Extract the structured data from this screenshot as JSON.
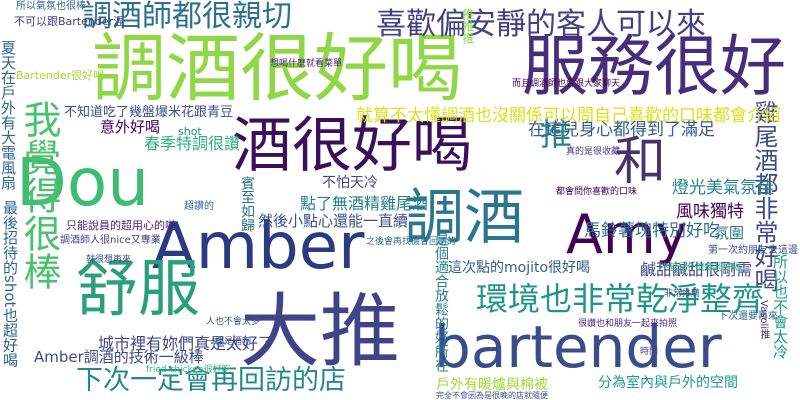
{
  "cloud": {
    "words": [
      {
        "text": "調酒很好喝",
        "color": "#8fd744"
      },
      {
        "text": "Amber",
        "color": "#2c3a84"
      },
      {
        "text": "bartender",
        "color": "#3a4c8b"
      },
      {
        "text": "大推",
        "color": "#404387"
      },
      {
        "text": "服務很好",
        "color": "#472d7b"
      },
      {
        "text": "Dou",
        "color": "#3fbc73"
      },
      {
        "text": "酒很好喝",
        "color": "#3c0f5a"
      },
      {
        "text": "Amy",
        "color": "#440154"
      },
      {
        "text": "調酒",
        "color": "#2a768e"
      },
      {
        "text": "舒服",
        "color": "#2aa07a"
      },
      {
        "text": "和",
        "color": "#46326e"
      },
      {
        "text": "喜歡偏安靜的客人可以來",
        "color": "#424086"
      },
      {
        "text": "調酒師都很親切",
        "color": "#2c728e"
      },
      {
        "text": "環境也非常乾淨整齊",
        "color": "#1f968b"
      },
      {
        "text": "我覺得很棒",
        "color": "#4ac16d"
      },
      {
        "text": "下次一定會再回訪的店",
        "color": "#23888e"
      },
      {
        "text": "推",
        "color": "#26818e"
      },
      {
        "text": "雞尾酒都非常好喝",
        "color": "#3e4a89"
      },
      {
        "text": "就算不太懂調酒也沒關係可以問自己喜歡的口味都會介紹",
        "color": "#d8e219"
      },
      {
        "text": "在這兒身心都得到了滿足",
        "color": "#365d8d"
      },
      {
        "text": "燈光美氣氛佳",
        "color": "#25838e"
      },
      {
        "text": "風味獨特",
        "color": "#440154"
      },
      {
        "text": "馬鈴薯塊特別好吃",
        "color": "#2e6e8e"
      },
      {
        "text": "鹹甜鹹甜很剛需",
        "color": "#3e4989"
      },
      {
        "text": "這次點的mojito很好喝",
        "color": "#375a8c"
      },
      {
        "text": "是個適合放鬆的好所在",
        "color": "#287d8e"
      },
      {
        "text": "城市裡有妳們真是太好了",
        "color": "#3f4889"
      },
      {
        "text": "Amber調酒的技術一級棒",
        "color": "#3e4a89"
      },
      {
        "text": "戶外有暖爐與棉被",
        "color": "#a0da39"
      },
      {
        "text": "分為室內與戶外的空間",
        "color": "#1f9a8a"
      },
      {
        "text": "最後招待的shot也超好喝",
        "color": "#32648e"
      },
      {
        "text": "夏天在戶外有大電風扇",
        "color": "#31668e"
      },
      {
        "text": "春季特調很讚",
        "color": "#2cb17e"
      },
      {
        "text": "點了無酒精雞尾酒",
        "color": "#277f8e"
      },
      {
        "text": "然後小點心還能一直續",
        "color": "#3b518b"
      },
      {
        "text": "所以也不會太冷",
        "color": "#1e9c89"
      },
      {
        "text": "氛圍",
        "color": "#2a768e"
      },
      {
        "text": "意外好喝",
        "color": "#440154"
      },
      {
        "text": "不怕天冷",
        "color": "#3f4889"
      },
      {
        "text": "賓至如歸",
        "color": "#2d718e"
      },
      {
        "text": "不知道吃了幾盤爆米花跟青豆",
        "color": "#3d4e8a"
      },
      {
        "text": "只能說員的超用心的啦",
        "color": "#472878"
      },
      {
        "text": "第一次約朋友去這邊",
        "color": "#3d4e8a"
      },
      {
        "text": "推推推",
        "color": "#8bd646"
      },
      {
        "text": "下次還要再來",
        "color": "#31688e"
      },
      {
        "text": "所以氣氛也很棒",
        "color": "#33628d"
      },
      {
        "text": "不可以跟Bartender混",
        "color": "#424086"
      },
      {
        "text": "超讚的",
        "color": "#2e6f8e"
      },
      {
        "text": "shot",
        "color": "#228c8d"
      },
      {
        "text": "Bartender很好喝",
        "color": "#a0da39"
      },
      {
        "text": "想喝什麼就看菜單",
        "color": "#482071"
      },
      {
        "text": "真的是很收藏",
        "color": "#453882"
      },
      {
        "text": "之後會再找機會回訪的",
        "color": "#2e6e8e"
      },
      {
        "text": "而且調酒師也會跟大家聊天",
        "color": "#440154"
      },
      {
        "text": "完全不會因為是很晚的店就隨便",
        "color": "#3b528b"
      },
      {
        "text": "不管是什麼都超好喝",
        "color": "#25ab82"
      },
      {
        "text": "很讚也和朋友一起來拍照",
        "color": "#472c7a"
      },
      {
        "text": "人也不會太多",
        "color": "#3b528b"
      },
      {
        "text": "一樓是酒吧",
        "color": "#3d4e8a"
      },
      {
        "text": "時間",
        "color": "#3e4989"
      },
      {
        "text": "Vasoli推",
        "color": "#46307e"
      },
      {
        "text": "都會問你喜歡的口味",
        "color": "#440154"
      },
      {
        "text": "非常推薦",
        "color": "#3f4788"
      },
      {
        "text": "就很想再來",
        "color": "#3d4e8a"
      },
      {
        "text": "調酒師人很nice又專業",
        "color": "#433e85"
      },
      {
        "text": "fried chicken很好吃",
        "color": "#35b779"
      }
    ]
  }
}
